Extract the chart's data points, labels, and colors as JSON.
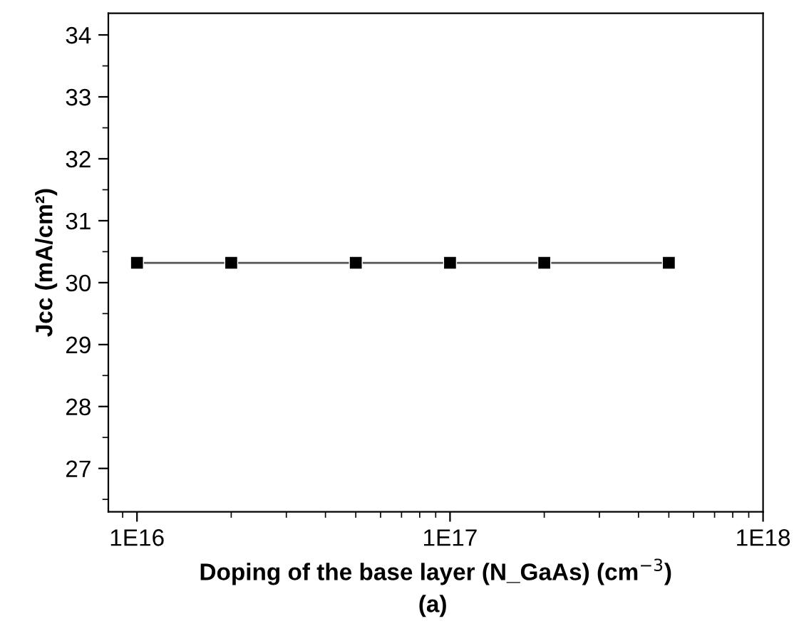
{
  "chart_data": {
    "type": "line",
    "xlabel": "Doping of the base layer (N_GaAs) (cm$^{−3}$)",
    "ylabel": "Jcc (mA/cm²)",
    "annotations": [
      "(a)"
    ],
    "x": [
      1e+16,
      2e+16,
      5e+16,
      1e+17,
      2e+17,
      5e+17
    ],
    "series": [
      {
        "color": "#000000",
        "values": [
          30.32,
          30.32,
          30.32,
          30.32,
          30.32,
          30.32
        ]
      }
    ],
    "log": "x",
    "xlim": [
      8100000000000000.0,
      1e+18
    ],
    "xticks": [
      {
        "value": 1e+16,
        "label": "1E16"
      },
      {
        "value": 1e+17,
        "label": "1E17"
      },
      {
        "value": 1e+18,
        "label": "1E18"
      }
    ],
    "ylim": [
      26.3,
      34.35
    ],
    "yticks": [
      27,
      28,
      29,
      30,
      31,
      32,
      33,
      34
    ],
    "grid": false,
    "legend": false,
    "marker": "square",
    "line_style": "solid"
  }
}
